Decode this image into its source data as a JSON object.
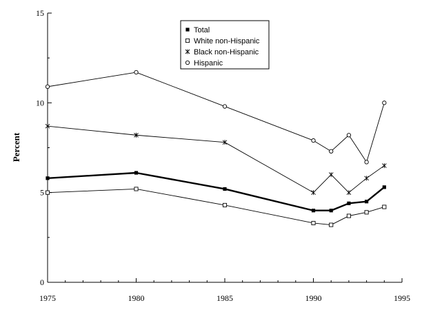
{
  "chart_data": {
    "type": "line",
    "title": "",
    "xlabel": "",
    "ylabel": "Percent",
    "xlim": [
      1975,
      1995
    ],
    "ylim": [
      0,
      15
    ],
    "x_ticks": [
      1975,
      1980,
      1985,
      1990,
      1995
    ],
    "y_ticks": [
      0,
      5,
      10,
      15
    ],
    "grid": false,
    "legend_position": "top-center",
    "series": [
      {
        "name": "Total",
        "marker": "filled-square",
        "line": "bold",
        "color": "#000000",
        "points": [
          [
            1975,
            5.8
          ],
          [
            1980,
            6.1
          ],
          [
            1985,
            5.2
          ],
          [
            1990,
            4.0
          ],
          [
            1991,
            4.0
          ],
          [
            1992,
            4.4
          ],
          [
            1993,
            4.5
          ],
          [
            1994,
            5.3
          ]
        ]
      },
      {
        "name": "White non-Hispanic",
        "marker": "open-square",
        "line": "thin",
        "color": "#000000",
        "points": [
          [
            1975,
            5.0
          ],
          [
            1980,
            5.2
          ],
          [
            1985,
            4.3
          ],
          [
            1990,
            3.3
          ],
          [
            1991,
            3.2
          ],
          [
            1992,
            3.7
          ],
          [
            1993,
            3.9
          ],
          [
            1994,
            4.2
          ]
        ]
      },
      {
        "name": "Black non-Hispanic",
        "marker": "star",
        "line": "thin",
        "color": "#000000",
        "points": [
          [
            1975,
            8.7
          ],
          [
            1980,
            8.2
          ],
          [
            1985,
            7.8
          ],
          [
            1990,
            5.0
          ],
          [
            1991,
            6.0
          ],
          [
            1992,
            5.0
          ],
          [
            1993,
            5.8
          ],
          [
            1994,
            6.5
          ]
        ]
      },
      {
        "name": "Hispanic",
        "marker": "open-circle",
        "line": "thin",
        "color": "#000000",
        "points": [
          [
            1975,
            10.9
          ],
          [
            1980,
            11.7
          ],
          [
            1985,
            9.8
          ],
          [
            1990,
            7.9
          ],
          [
            1991,
            7.3
          ],
          [
            1992,
            8.2
          ],
          [
            1993,
            6.7
          ],
          [
            1994,
            10.0
          ]
        ]
      }
    ]
  }
}
